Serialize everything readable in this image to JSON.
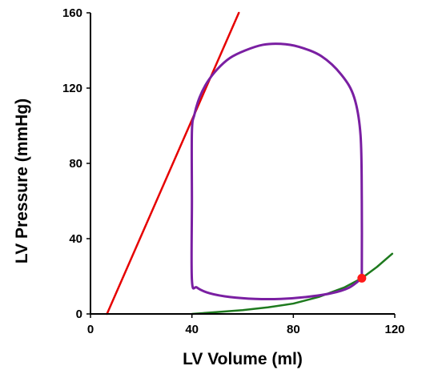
{
  "chart_data": {
    "type": "line",
    "title": "",
    "xlabel": "LV Volume (ml)",
    "ylabel": "LV Pressure (mmHg)",
    "xlim": [
      0,
      120
    ],
    "ylim": [
      0,
      160
    ],
    "xticks": [
      0,
      40,
      80,
      120
    ],
    "yticks": [
      0,
      40,
      80,
      120,
      160
    ],
    "grid": false,
    "legend": "none",
    "series": [
      {
        "key": "espvr",
        "color": "#e60000",
        "points": [
          [
            6.5,
            0
          ],
          [
            58.5,
            160
          ]
        ]
      },
      {
        "key": "edpvr",
        "color": "#1e7a1e",
        "points": [
          [
            40,
            0
          ],
          [
            50,
            1
          ],
          [
            60,
            2
          ],
          [
            70,
            3.5
          ],
          [
            80,
            5.5
          ],
          [
            90,
            9
          ],
          [
            100,
            14
          ],
          [
            107,
            19
          ],
          [
            113,
            25
          ],
          [
            119,
            32
          ]
        ]
      },
      {
        "key": "pv-loop",
        "color": "#7a1fa2",
        "points": [
          [
            107,
            19
          ],
          [
            107,
            60
          ],
          [
            106.5,
            95
          ],
          [
            104,
            115
          ],
          [
            99,
            127
          ],
          [
            91,
            137
          ],
          [
            82,
            142
          ],
          [
            75,
            143.5
          ],
          [
            68,
            143
          ],
          [
            61,
            140
          ],
          [
            55,
            136
          ],
          [
            50,
            130
          ],
          [
            46,
            123
          ],
          [
            43,
            115
          ],
          [
            41,
            106
          ],
          [
            40,
            97
          ],
          [
            40,
            60
          ],
          [
            40,
            18
          ],
          [
            42,
            14
          ],
          [
            47,
            11
          ],
          [
            55,
            9
          ],
          [
            65,
            8
          ],
          [
            75,
            8
          ],
          [
            85,
            9
          ],
          [
            95,
            11
          ],
          [
            102,
            14
          ],
          [
            107,
            19
          ]
        ]
      }
    ],
    "marker": {
      "x": 107,
      "y": 19,
      "color": "#ff1a1a"
    }
  }
}
